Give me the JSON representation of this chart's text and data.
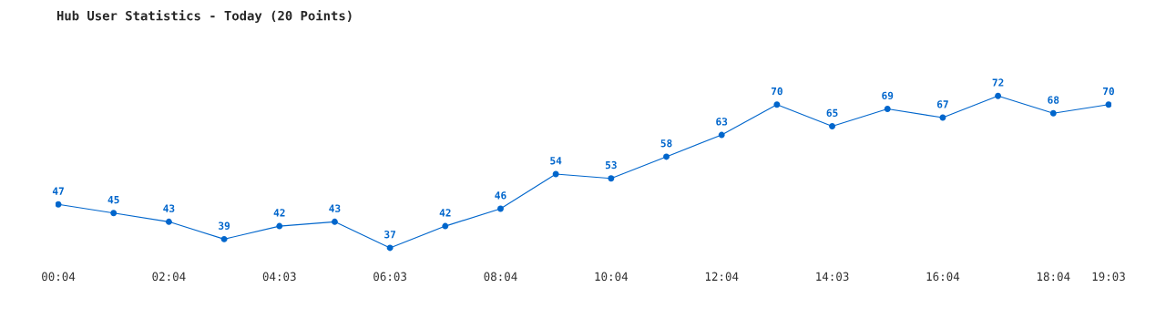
{
  "chart_data": {
    "type": "line",
    "title": "Hub User Statistics - Today (20 Points)",
    "categories": [
      "00:04",
      null,
      "02:04",
      null,
      "04:03",
      null,
      "06:03",
      null,
      "08:04",
      null,
      "10:04",
      null,
      "12:04",
      null,
      "14:03",
      null,
      "16:04",
      null,
      "18:04",
      "19:03"
    ],
    "series": [
      {
        "color": "#0066cc",
        "values": [
          47,
          45,
          43,
          39,
          42,
          43,
          37,
          42,
          46,
          54,
          53,
          58,
          63,
          70,
          65,
          69,
          67,
          72,
          68,
          70
        ]
      }
    ],
    "data_labels": true,
    "marker": "circle",
    "line_style": "solid",
    "grid": false,
    "tick_labels": "x"
  }
}
